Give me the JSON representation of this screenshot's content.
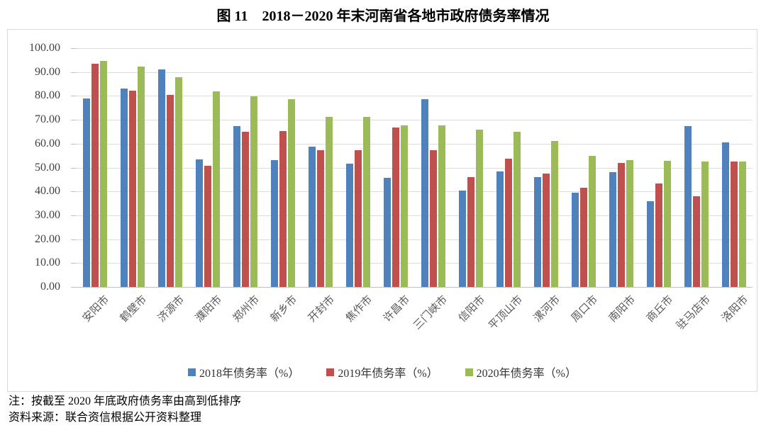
{
  "title": "图 11　2018－2020 年末河南省各地市政府债务率情况",
  "notes": {
    "note": "注：按截至 2020 年底政府债务率由高到低排序",
    "source": "资料来源：联合资信根据公开资料整理"
  },
  "chart_data": {
    "type": "bar",
    "title": "图 11　2018－2020 年末河南省各地市政府债务率情况",
    "categories": [
      "安阳市",
      "鹤壁市",
      "济源市",
      "濮阳市",
      "郑州市",
      "新乡市",
      "开封市",
      "焦作市",
      "许昌市",
      "三门峡市",
      "信阳市",
      "平顶山市",
      "漯河市",
      "周口市",
      "南阳市",
      "商丘市",
      "驻马店市",
      "洛阳市"
    ],
    "series": [
      {
        "name": "2018年债务率（%）",
        "color": "#4F81BD",
        "values": [
          78.9,
          83.0,
          91.0,
          53.3,
          67.5,
          53.2,
          58.8,
          51.7,
          45.7,
          78.7,
          40.4,
          48.4,
          45.9,
          39.5,
          48.2,
          35.8,
          67.5,
          60.4
        ]
      },
      {
        "name": "2019年债务率（%）",
        "color": "#C0504D",
        "values": [
          93.6,
          82.2,
          80.4,
          50.7,
          65.0,
          65.3,
          57.4,
          57.2,
          66.7,
          57.4,
          45.9,
          53.8,
          47.4,
          41.4,
          52.0,
          43.2,
          38.1,
          52.5
        ]
      },
      {
        "name": "2020年债务率（%）",
        "color": "#9BBB59",
        "values": [
          94.6,
          92.3,
          87.9,
          81.9,
          79.8,
          78.6,
          71.3,
          71.2,
          67.7,
          67.6,
          66.0,
          65.1,
          61.2,
          54.9,
          53.0,
          52.9,
          52.5,
          52.4
        ]
      }
    ],
    "ylim": [
      0,
      100
    ],
    "ytick_step": 10,
    "yticks": [
      "0.00",
      "10.00",
      "20.00",
      "30.00",
      "40.00",
      "50.00",
      "60.00",
      "70.00",
      "80.00",
      "90.00",
      "100.00"
    ],
    "grid": true,
    "legend_position": "bottom"
  }
}
